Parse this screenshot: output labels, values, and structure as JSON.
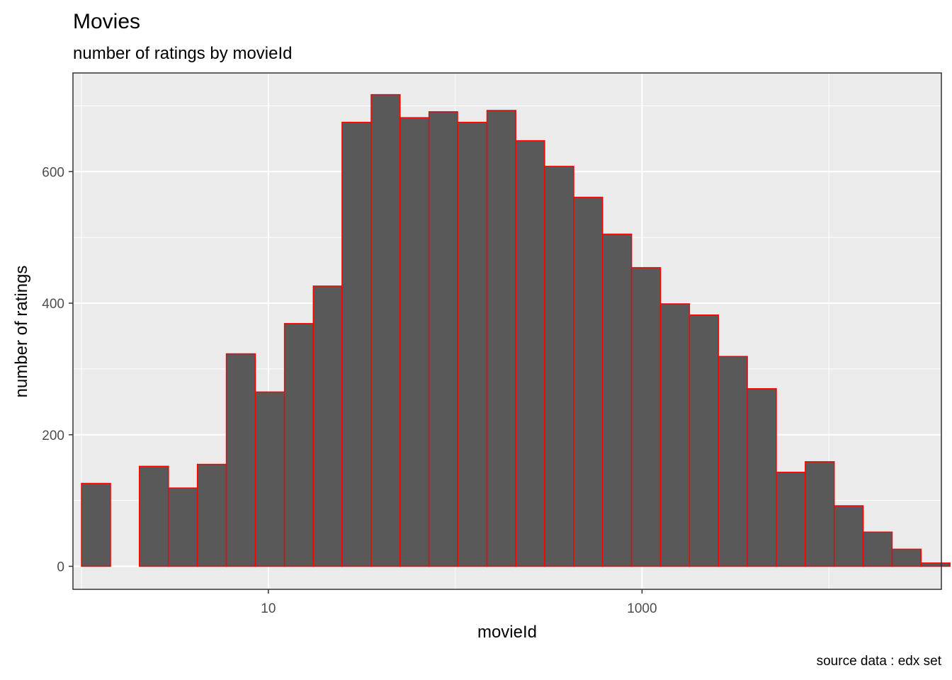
{
  "chart_data": {
    "type": "bar",
    "title": "Movies",
    "subtitle": "number of ratings by movieId",
    "xlabel": "movieId",
    "ylabel": "number of ratings",
    "caption": "source data : edx set",
    "x_scale": "log10",
    "xlim": [
      0.9,
      40000
    ],
    "ylim": [
      -35,
      750
    ],
    "x_ticks": [
      {
        "value": 10,
        "label": "10"
      },
      {
        "value": 1000,
        "label": "1000"
      }
    ],
    "x_minor_ticks": [
      1,
      100,
      10000
    ],
    "y_ticks": [
      {
        "value": 0,
        "label": "0"
      },
      {
        "value": 200,
        "label": "200"
      },
      {
        "value": 400,
        "label": "400"
      },
      {
        "value": 600,
        "label": "600"
      }
    ],
    "y_minor_ticks": [
      100,
      300,
      500,
      700
    ],
    "grid": true,
    "bar_fill": "#595959",
    "bar_outline": "#ff0000",
    "panel_background": "#ebebeb",
    "bins": [
      {
        "x_min": 1.0,
        "x_max": 1.43,
        "count": 126
      },
      {
        "x_min": 1.43,
        "x_max": 2.04,
        "count": 0
      },
      {
        "x_min": 2.04,
        "x_max": 2.92,
        "count": 152
      },
      {
        "x_min": 2.92,
        "x_max": 4.17,
        "count": 119
      },
      {
        "x_min": 4.17,
        "x_max": 5.96,
        "count": 155
      },
      {
        "x_min": 5.96,
        "x_max": 8.52,
        "count": 323
      },
      {
        "x_min": 8.52,
        "x_max": 12.2,
        "count": 265
      },
      {
        "x_min": 12.2,
        "x_max": 17.4,
        "count": 369
      },
      {
        "x_min": 17.4,
        "x_max": 24.8,
        "count": 426
      },
      {
        "x_min": 24.8,
        "x_max": 35.5,
        "count": 675
      },
      {
        "x_min": 35.5,
        "x_max": 50.7,
        "count": 717
      },
      {
        "x_min": 50.7,
        "x_max": 72.4,
        "count": 682
      },
      {
        "x_min": 72.4,
        "x_max": 103,
        "count": 691
      },
      {
        "x_min": 103,
        "x_max": 148,
        "count": 675
      },
      {
        "x_min": 148,
        "x_max": 211,
        "count": 693
      },
      {
        "x_min": 211,
        "x_max": 301,
        "count": 647
      },
      {
        "x_min": 301,
        "x_max": 431,
        "count": 608
      },
      {
        "x_min": 431,
        "x_max": 615,
        "count": 561
      },
      {
        "x_min": 615,
        "x_max": 879,
        "count": 505
      },
      {
        "x_min": 879,
        "x_max": 1256,
        "count": 454
      },
      {
        "x_min": 1256,
        "x_max": 1794,
        "count": 399
      },
      {
        "x_min": 1794,
        "x_max": 2563,
        "count": 382
      },
      {
        "x_min": 2563,
        "x_max": 3662,
        "count": 319
      },
      {
        "x_min": 3662,
        "x_max": 5232,
        "count": 270
      },
      {
        "x_min": 5232,
        "x_max": 7475,
        "count": 143
      },
      {
        "x_min": 7475,
        "x_max": 10680,
        "count": 159
      },
      {
        "x_min": 10680,
        "x_max": 15260,
        "count": 92
      },
      {
        "x_min": 15260,
        "x_max": 21800,
        "count": 52
      },
      {
        "x_min": 21800,
        "x_max": 31150,
        "count": 26
      },
      {
        "x_min": 31150,
        "x_max": 44500,
        "count": 5
      }
    ]
  }
}
